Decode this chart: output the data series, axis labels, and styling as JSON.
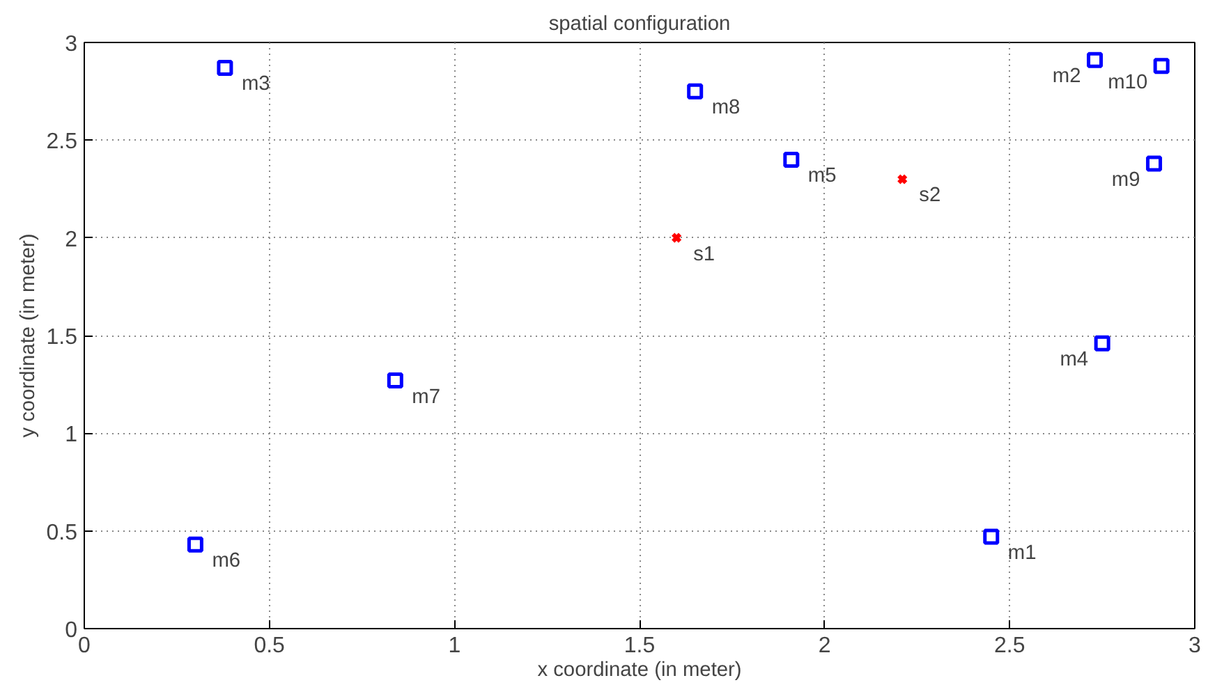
{
  "chart_data": {
    "type": "scatter",
    "title": "spatial configuration",
    "xlabel": "x coordinate (in meter)",
    "ylabel": "y coordinate (in meter)",
    "xlim": [
      0,
      3
    ],
    "ylim": [
      0,
      3
    ],
    "xticks": [
      0,
      0.5,
      1,
      1.5,
      2,
      2.5,
      3
    ],
    "yticks": [
      0,
      0.5,
      1,
      1.5,
      2,
      2.5,
      3
    ],
    "grid": true,
    "series": [
      {
        "color": "#0000ff",
        "marker": "square",
        "x": [
          2.45,
          2.73,
          0.38,
          2.75,
          1.91,
          0.3,
          0.84,
          1.65,
          2.89,
          2.91
        ],
        "values": [
          0.47,
          2.91,
          2.87,
          1.46,
          2.4,
          0.43,
          1.27,
          2.75,
          2.38,
          2.88
        ]
      },
      {
        "color": "#ff0000",
        "marker": "cross",
        "x": [
          1.6,
          2.21
        ],
        "values": [
          2.0,
          2.3
        ]
      }
    ],
    "annotations": [
      {
        "text": "m1",
        "x": 2.45,
        "y": 0.47
      },
      {
        "text": "m2",
        "x": 2.73,
        "y": 2.91
      },
      {
        "text": "m3",
        "x": 0.38,
        "y": 2.87
      },
      {
        "text": "m4",
        "x": 2.75,
        "y": 1.46
      },
      {
        "text": "m5",
        "x": 1.91,
        "y": 2.4
      },
      {
        "text": "m6",
        "x": 0.3,
        "y": 0.43
      },
      {
        "text": "m7",
        "x": 0.84,
        "y": 1.27
      },
      {
        "text": "m8",
        "x": 1.65,
        "y": 2.75
      },
      {
        "text": "m9",
        "x": 2.89,
        "y": 2.38
      },
      {
        "text": "m10",
        "x": 2.91,
        "y": 2.88
      },
      {
        "text": "s1",
        "x": 1.6,
        "y": 2.0
      },
      {
        "text": "s2",
        "x": 2.21,
        "y": 2.3
      }
    ]
  }
}
